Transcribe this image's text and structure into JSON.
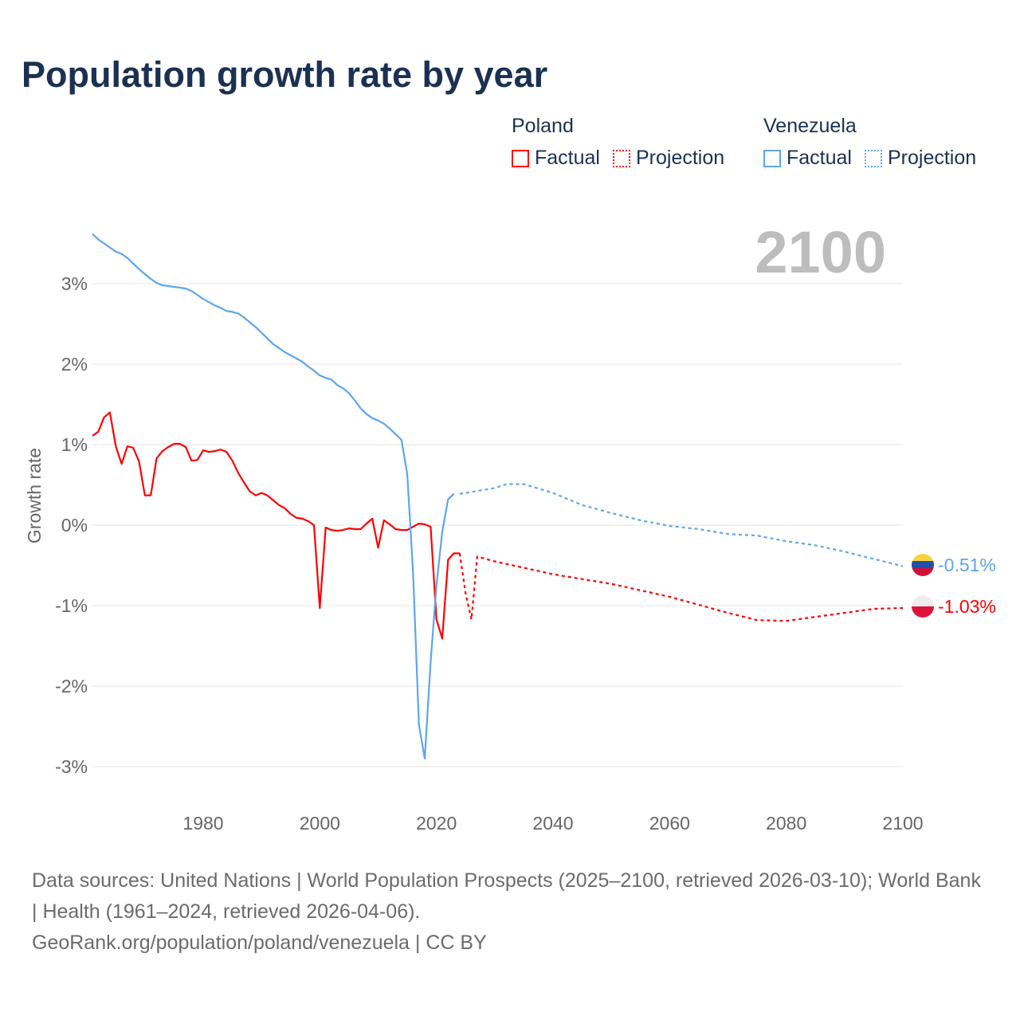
{
  "title": "Population growth rate by year",
  "legend": {
    "groups": [
      {
        "name": "Poland",
        "factual": "Factual",
        "projection": "Projection",
        "color": "#ff0000"
      },
      {
        "name": "Venezuela",
        "factual": "Factual",
        "projection": "Projection",
        "color": "#5ea5ec"
      }
    ]
  },
  "current_year": "2100",
  "end_labels": {
    "venezuela": "-0.51%",
    "poland": "-1.03%"
  },
  "source": {
    "line1": "Data sources: United Nations | World Population Prospects (2025–2100, retrieved 2026-03-10); World Bank | Health (1961–2024, retrieved 2026-04-06).",
    "line2": "GeoRank.org/population/poland/venezuela | CC BY"
  },
  "chart_data": {
    "type": "line",
    "title": "Population growth rate by year",
    "ylabel": "Growth rate",
    "xlabel": "",
    "xlim": [
      1961,
      2100
    ],
    "ylim": [
      -3.5,
      3.7
    ],
    "xticks": [
      "1980",
      "2000",
      "2020",
      "2040",
      "2060",
      "2080",
      "2100"
    ],
    "xtick_values": [
      1980,
      2000,
      2020,
      2040,
      2060,
      2080,
      2100
    ],
    "yticks": [
      "3%",
      "2%",
      "1%",
      "0%",
      "-1%",
      "-2%",
      "-3%"
    ],
    "ytick_values": [
      3,
      2,
      1,
      0,
      -1,
      -2,
      -3
    ],
    "grid": true,
    "series": [
      {
        "name": "Poland",
        "kind": "Factual",
        "color": "#ff0000",
        "x_start": 1961,
        "values": [
          1.11,
          1.16,
          1.34,
          1.4,
          0.98,
          0.76,
          0.98,
          0.96,
          0.79,
          0.37,
          0.37,
          0.83,
          0.92,
          0.97,
          1.01,
          1.01,
          0.97,
          0.8,
          0.81,
          0.93,
          0.91,
          0.92,
          0.94,
          0.91,
          0.8,
          0.65,
          0.53,
          0.42,
          0.37,
          0.4,
          0.37,
          0.31,
          0.25,
          0.21,
          0.14,
          0.09,
          0.08,
          0.05,
          0.0,
          -1.03,
          -0.03,
          -0.06,
          -0.07,
          -0.06,
          -0.04,
          -0.05,
          -0.05,
          0.02,
          0.08,
          -0.28,
          0.06,
          0.01,
          -0.05,
          -0.06,
          -0.06,
          -0.02,
          0.02,
          0.01,
          -0.02,
          -1.17,
          -1.41,
          -0.43,
          -0.35,
          -0.35
        ]
      },
      {
        "name": "Poland",
        "kind": "Projection",
        "color": "#ff0000",
        "x": [
          2024,
          2025,
          2026,
          2027,
          2030,
          2035,
          2040,
          2045,
          2050,
          2055,
          2060,
          2065,
          2070,
          2075,
          2080,
          2085,
          2090,
          2095,
          2100
        ],
        "values": [
          -0.35,
          -0.85,
          -1.17,
          -0.39,
          -0.45,
          -0.53,
          -0.61,
          -0.67,
          -0.73,
          -0.81,
          -0.89,
          -0.99,
          -1.09,
          -1.18,
          -1.19,
          -1.14,
          -1.09,
          -1.04,
          -1.03
        ]
      },
      {
        "name": "Venezuela",
        "kind": "Factual",
        "color": "#5ea5ec",
        "x_start": 1961,
        "values": [
          3.62,
          3.55,
          3.5,
          3.45,
          3.4,
          3.37,
          3.32,
          3.25,
          3.18,
          3.12,
          3.06,
          3.01,
          2.98,
          2.97,
          2.96,
          2.95,
          2.94,
          2.91,
          2.86,
          2.81,
          2.77,
          2.73,
          2.7,
          2.66,
          2.65,
          2.63,
          2.58,
          2.52,
          2.46,
          2.39,
          2.32,
          2.25,
          2.2,
          2.15,
          2.11,
          2.07,
          2.03,
          1.97,
          1.92,
          1.86,
          1.83,
          1.81,
          1.74,
          1.7,
          1.64,
          1.55,
          1.45,
          1.38,
          1.33,
          1.3,
          1.26,
          1.2,
          1.13,
          1.06,
          0.63,
          -0.6,
          -2.48,
          -2.9,
          -1.7,
          -0.75,
          -0.08,
          0.32,
          0.39
        ]
      },
      {
        "name": "Venezuela",
        "kind": "Projection",
        "color": "#5ea5ec",
        "x": [
          2024,
          2025,
          2030,
          2032,
          2035,
          2040,
          2045,
          2050,
          2055,
          2060,
          2065,
          2070,
          2075,
          2080,
          2085,
          2090,
          2095,
          2100
        ],
        "values": [
          0.39,
          0.4,
          0.46,
          0.51,
          0.51,
          0.4,
          0.25,
          0.15,
          0.06,
          -0.01,
          -0.05,
          -0.11,
          -0.13,
          -0.2,
          -0.25,
          -0.33,
          -0.42,
          -0.51
        ]
      }
    ]
  }
}
